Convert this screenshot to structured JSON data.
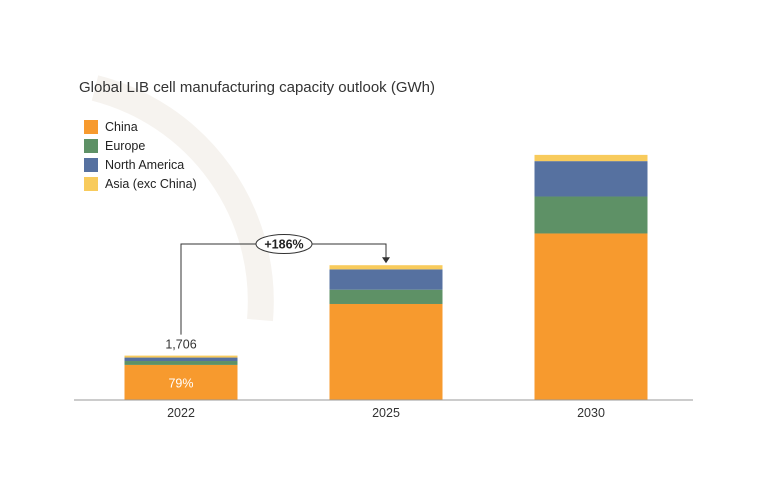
{
  "title": "Global LIB cell manufacturing capacity outlook (GWh)",
  "chart_data": {
    "type": "bar",
    "stacked": true,
    "title": "Global LIB cell manufacturing capacity outlook (GWh)",
    "xlabel": "",
    "ylabel": "",
    "categories": [
      "2022",
      "2025",
      "2030"
    ],
    "series": [
      {
        "name": "China",
        "color": "#F79A2E",
        "values": [
          1348,
          3690,
          6400
        ]
      },
      {
        "name": "Europe",
        "color": "#5E9166",
        "values": [
          150,
          550,
          1420
        ]
      },
      {
        "name": "North America",
        "color": "#5671A0",
        "values": [
          133,
          780,
          1360
        ]
      },
      {
        "name": "Asia (exc China)",
        "color": "#F8CB5C",
        "values": [
          75,
          160,
          240
        ]
      }
    ],
    "ylim": [
      0,
      9800
    ],
    "grid": false,
    "legend_position": "top-left",
    "annotations": {
      "total_label_2022": "1,706",
      "china_share_2022": "79%",
      "growth_label": "+186%"
    }
  }
}
